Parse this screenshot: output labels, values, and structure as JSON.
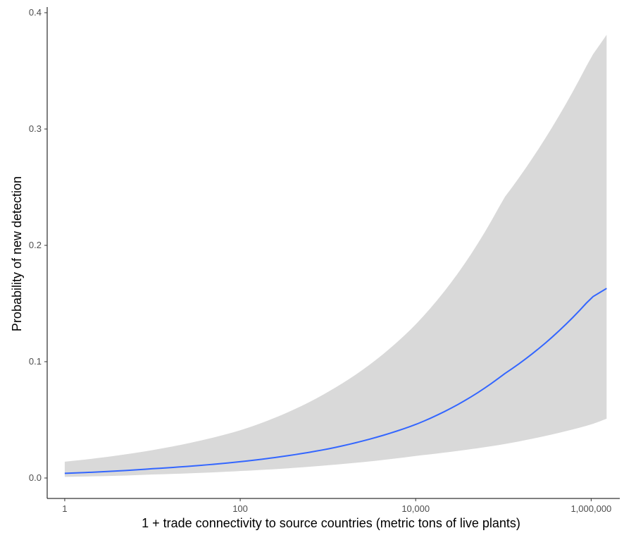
{
  "chart_data": {
    "type": "line",
    "title": "",
    "xlabel": "1 + trade connectivity to source countries (metric tons of live plants)",
    "ylabel": "Probability of new detection",
    "x_scale": "log10",
    "xlim": [
      1,
      1500000
    ],
    "ylim": [
      0,
      0.4
    ],
    "x_ticks": [
      {
        "value": 1,
        "label": "1"
      },
      {
        "value": 100,
        "label": "100"
      },
      {
        "value": 10000,
        "label": "10,000"
      },
      {
        "value": 1000000,
        "label": "1,000,000"
      }
    ],
    "y_ticks": [
      {
        "value": 0,
        "label": "0.0"
      },
      {
        "value": 0.1,
        "label": "0.1"
      },
      {
        "value": 0.2,
        "label": "0.2"
      },
      {
        "value": 0.3,
        "label": "0.3"
      },
      {
        "value": 0.4,
        "label": "0.4"
      }
    ],
    "grid": false,
    "legend": "none",
    "series": [
      {
        "x": [
          1,
          10,
          100,
          1000,
          10000,
          100000,
          1000000,
          1500000
        ],
        "y": [
          0.004,
          0.008,
          0.014,
          0.025,
          0.046,
          0.089,
          0.155,
          0.163
        ],
        "lower": [
          0.001,
          0.003,
          0.006,
          0.011,
          0.019,
          0.029,
          0.046,
          0.051
        ],
        "upper": [
          0.014,
          0.024,
          0.041,
          0.074,
          0.132,
          0.24,
          0.362,
          0.381
        ],
        "color": "#3366ff"
      }
    ],
    "band_color": "#d9d9d9"
  }
}
